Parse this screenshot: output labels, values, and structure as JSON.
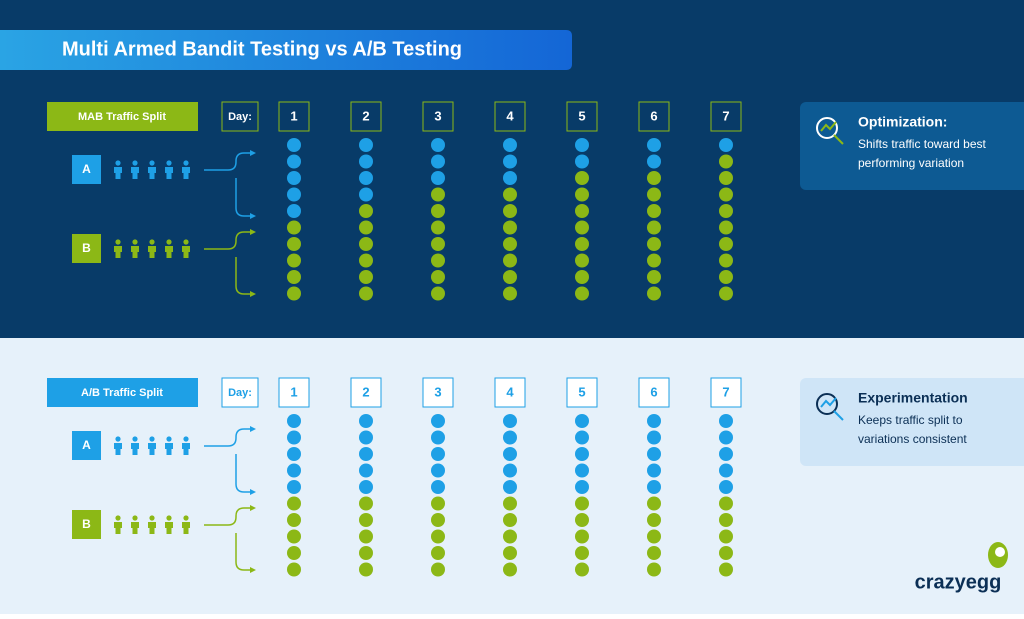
{
  "title": "Multi Armed Bandit Testing vs A/B Testing",
  "sections": [
    {
      "label": "MAB Traffic Split",
      "day_label": "Day:",
      "variant_a": "A",
      "variant_b": "B",
      "days": [
        {
          "label": "1",
          "a": 5,
          "b": 5
        },
        {
          "label": "2",
          "a": 4,
          "b": 6
        },
        {
          "label": "3",
          "a": 3,
          "b": 7
        },
        {
          "label": "4",
          "a": 3,
          "b": 7
        },
        {
          "label": "5",
          "a": 2,
          "b": 8
        },
        {
          "label": "6",
          "a": 2,
          "b": 8
        },
        {
          "label": "7",
          "a": 1,
          "b": 9
        }
      ],
      "card": {
        "title": "Optimization:",
        "lines": [
          "Shifts traffic toward best",
          "performing variation"
        ]
      }
    },
    {
      "label": "A/B Traffic Split",
      "day_label": "Day:",
      "variant_a": "A",
      "variant_b": "B",
      "days": [
        {
          "label": "1",
          "a": 5,
          "b": 5
        },
        {
          "label": "2",
          "a": 5,
          "b": 5
        },
        {
          "label": "3",
          "a": 5,
          "b": 5
        },
        {
          "label": "4",
          "a": 5,
          "b": 5
        },
        {
          "label": "5",
          "a": 5,
          "b": 5
        },
        {
          "label": "6",
          "a": 5,
          "b": 5
        },
        {
          "label": "7",
          "a": 5,
          "b": 5
        }
      ],
      "card": {
        "title": "Experimentation",
        "lines": [
          "Keeps traffic split to",
          "variations consistent"
        ]
      }
    }
  ],
  "brand": "crazyegg"
}
